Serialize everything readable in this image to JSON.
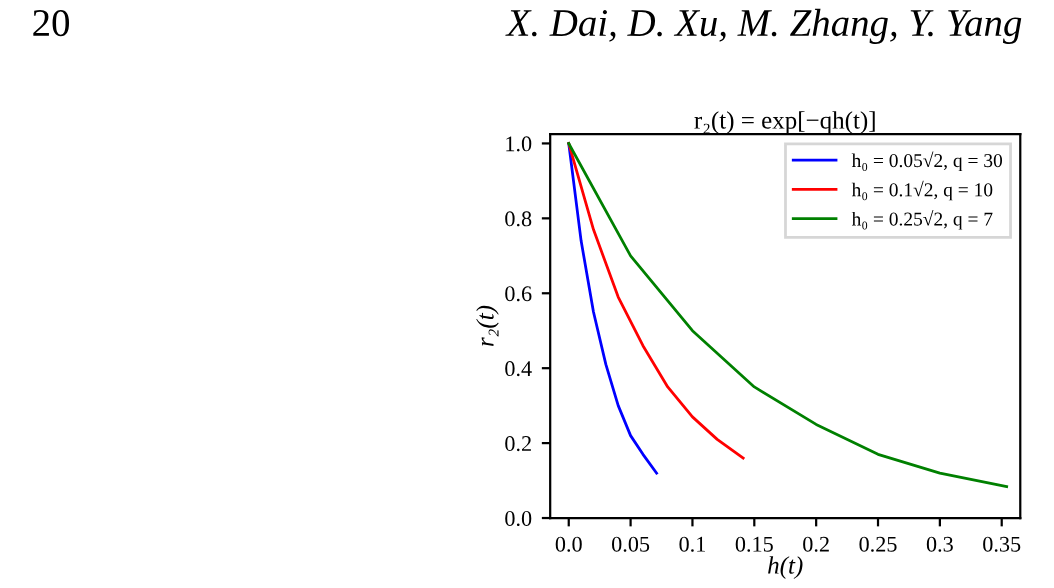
{
  "chart_data": {
    "type": "line",
    "title": "r₂(t) = exp[−qh(t)]",
    "xlabel": "h(t)",
    "ylabel": "r₂(t)",
    "annotations": [
      "20",
      "X. Dai, D. Xu, M. Zhang, Y. Yang"
    ],
    "series": [
      {
        "name": "h₀ = 0.05√2, q = 30",
        "color": "#0000ff",
        "x": [
          0,
          0.01,
          0.02,
          0.03,
          0.04,
          0.05,
          0.06,
          0.071
        ],
        "values": [
          1.0,
          0.74,
          0.55,
          0.41,
          0.3,
          0.22,
          0.17,
          0.12
        ]
      },
      {
        "name": "h₀ = 0.1√2, q = 10",
        "color": "#ff0000",
        "x": [
          0,
          0.02,
          0.04,
          0.06,
          0.08,
          0.1,
          0.12,
          0.141
        ],
        "values": [
          1.0,
          0.77,
          0.59,
          0.46,
          0.35,
          0.27,
          0.21,
          0.16
        ]
      },
      {
        "name": "h₀ = 0.25√2, q = 7",
        "color": "#008000",
        "x": [
          0,
          0.05,
          0.1,
          0.15,
          0.2,
          0.25,
          0.3,
          0.354
        ],
        "values": [
          1.0,
          0.7,
          0.5,
          0.35,
          0.25,
          0.17,
          0.12,
          0.084
        ]
      }
    ],
    "xlim": [
      -0.015,
      0.365
    ],
    "ylim": [
      0,
      1.025
    ],
    "xticks": [
      {
        "value": 0,
        "label": "0.0"
      },
      0.05,
      0.1,
      0.15,
      0.2,
      0.25,
      0.3,
      0.35
    ],
    "yticks": [
      {
        "value": 0,
        "label": "0.0"
      },
      0.2,
      0.4,
      0.6,
      0.8,
      {
        "value": 1,
        "label": "1.0"
      }
    ],
    "legend": "top right",
    "grid": false,
    "line_style": "solid",
    "marker": "none"
  }
}
